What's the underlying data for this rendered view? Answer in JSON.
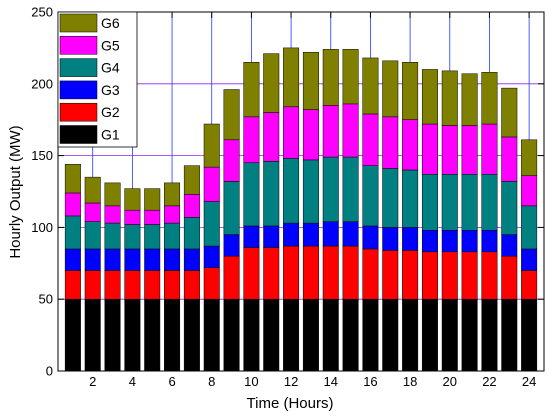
{
  "chart_data": {
    "type": "bar",
    "stacked": true,
    "title": "",
    "xlabel": "Time (Hours)",
    "ylabel": "Hourly Output (MW)",
    "ylim": [
      0,
      250
    ],
    "yticks": [
      0,
      50,
      100,
      150,
      200,
      250
    ],
    "xticks": [
      2,
      4,
      6,
      8,
      10,
      12,
      14,
      16,
      18,
      20,
      22,
      24
    ],
    "grid": true,
    "legend_position": "top-left",
    "categories": [
      1,
      2,
      3,
      4,
      5,
      6,
      7,
      8,
      9,
      10,
      11,
      12,
      13,
      14,
      15,
      16,
      17,
      18,
      19,
      20,
      21,
      22,
      23,
      24
    ],
    "series": [
      {
        "name": "G1",
        "color": "#000000",
        "values": [
          50,
          50,
          50,
          50,
          50,
          50,
          50,
          50,
          50,
          50,
          50,
          50,
          50,
          50,
          50,
          50,
          50,
          50,
          50,
          50,
          50,
          50,
          50,
          50
        ]
      },
      {
        "name": "G2",
        "color": "#ff0000",
        "values": [
          20,
          20,
          20,
          20,
          20,
          20,
          20,
          22,
          30,
          36,
          36,
          37,
          37,
          37,
          37,
          35,
          34,
          34,
          33,
          33,
          33,
          33,
          30,
          20
        ]
      },
      {
        "name": "G3",
        "color": "#0000ff",
        "values": [
          15,
          15,
          15,
          15,
          15,
          15,
          15,
          15,
          15,
          15,
          15,
          16,
          16,
          17,
          17,
          16,
          16,
          16,
          15,
          15,
          15,
          15,
          15,
          15
        ]
      },
      {
        "name": "G4",
        "color": "#008080",
        "values": [
          23,
          19,
          18,
          17,
          17,
          18,
          22,
          31,
          37,
          44,
          45,
          45,
          44,
          45,
          45,
          42,
          41,
          40,
          39,
          39,
          39,
          39,
          37,
          30
        ]
      },
      {
        "name": "G5",
        "color": "#ff00ff",
        "values": [
          16,
          13,
          12,
          10,
          10,
          12,
          16,
          24,
          29,
          32,
          34,
          36,
          35,
          36,
          37,
          36,
          36,
          35,
          35,
          34,
          34,
          35,
          31,
          21
        ]
      },
      {
        "name": "G6",
        "color": "#808000",
        "values": [
          20,
          18,
          16,
          15,
          15,
          16,
          20,
          30,
          35,
          38,
          41,
          41,
          40,
          39,
          38,
          39,
          39,
          40,
          38,
          38,
          36,
          36,
          34,
          25
        ]
      }
    ]
  }
}
